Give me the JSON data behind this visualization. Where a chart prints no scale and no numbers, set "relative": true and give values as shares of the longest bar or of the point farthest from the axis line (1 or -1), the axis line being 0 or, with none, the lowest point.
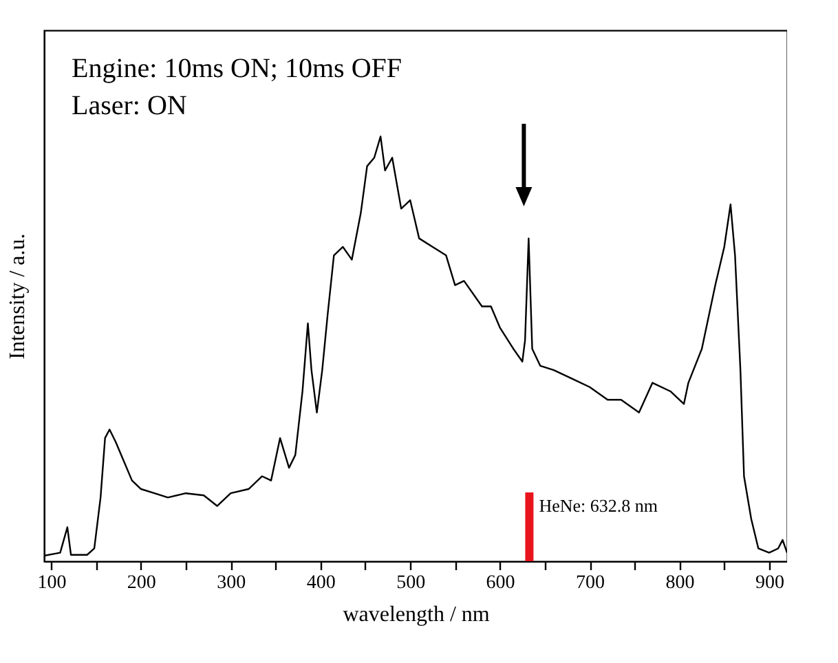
{
  "chart_data": {
    "type": "line",
    "relative": true,
    "xlabel": "wavelength / nm",
    "ylabel": "Intensity / a.u.",
    "annotations": [
      "Engine: 10ms ON; 10ms OFF",
      "Laser:   ON"
    ],
    "xlim": [
      92,
      920
    ],
    "xticks": [
      100,
      {
        "value": 150,
        "label": null
      },
      200,
      {
        "value": 250,
        "label": null
      },
      300,
      {
        "value": 350,
        "label": null
      },
      400,
      {
        "value": 450,
        "label": null
      },
      500,
      {
        "value": 550,
        "label": null
      },
      600,
      {
        "value": 650,
        "label": null
      },
      700,
      {
        "value": 750,
        "label": null
      },
      800,
      {
        "value": 850,
        "label": null
      },
      900
    ],
    "ref_lines": [
      {
        "axis": "x",
        "value": 632.8,
        "label": "HeNe: 632.8 nm",
        "color": "#e8141c"
      }
    ],
    "x": [
      92,
      110,
      118,
      122,
      140,
      148,
      155,
      160,
      165,
      172,
      180,
      190,
      200,
      215,
      230,
      250,
      270,
      285,
      300,
      320,
      335,
      345,
      355,
      365,
      372,
      380,
      386,
      390,
      396,
      402,
      408,
      415,
      425,
      435,
      445,
      452,
      460,
      467,
      472,
      480,
      490,
      500,
      510,
      525,
      540,
      550,
      560,
      580,
      590,
      600,
      615,
      625,
      628,
      632,
      636,
      645,
      660,
      680,
      700,
      720,
      735,
      755,
      770,
      790,
      805,
      810,
      825,
      840,
      850,
      857,
      862,
      868,
      872,
      880,
      888,
      900,
      910,
      915,
      920
    ],
    "series": [
      {
        "color": "#000000",
        "values": [
          0.013,
          0.02,
          0.08,
          0.015,
          0.015,
          0.03,
          0.15,
          0.29,
          0.31,
          0.28,
          0.24,
          0.19,
          0.17,
          0.16,
          0.15,
          0.16,
          0.155,
          0.13,
          0.16,
          0.17,
          0.2,
          0.19,
          0.29,
          0.22,
          0.25,
          0.4,
          0.56,
          0.45,
          0.35,
          0.45,
          0.58,
          0.72,
          0.74,
          0.71,
          0.82,
          0.93,
          0.95,
          1,
          0.92,
          0.95,
          0.83,
          0.85,
          0.76,
          0.74,
          0.72,
          0.65,
          0.66,
          0.6,
          0.6,
          0.55,
          0.5,
          0.47,
          0.52,
          0.76,
          0.5,
          0.46,
          0.45,
          0.43,
          0.41,
          0.38,
          0.38,
          0.35,
          0.42,
          0.4,
          0.37,
          0.42,
          0.5,
          0.65,
          0.74,
          0.84,
          0.72,
          0.45,
          0.2,
          0.1,
          0.03,
          0.02,
          0.03,
          0.05,
          0.02
        ]
      }
    ]
  }
}
